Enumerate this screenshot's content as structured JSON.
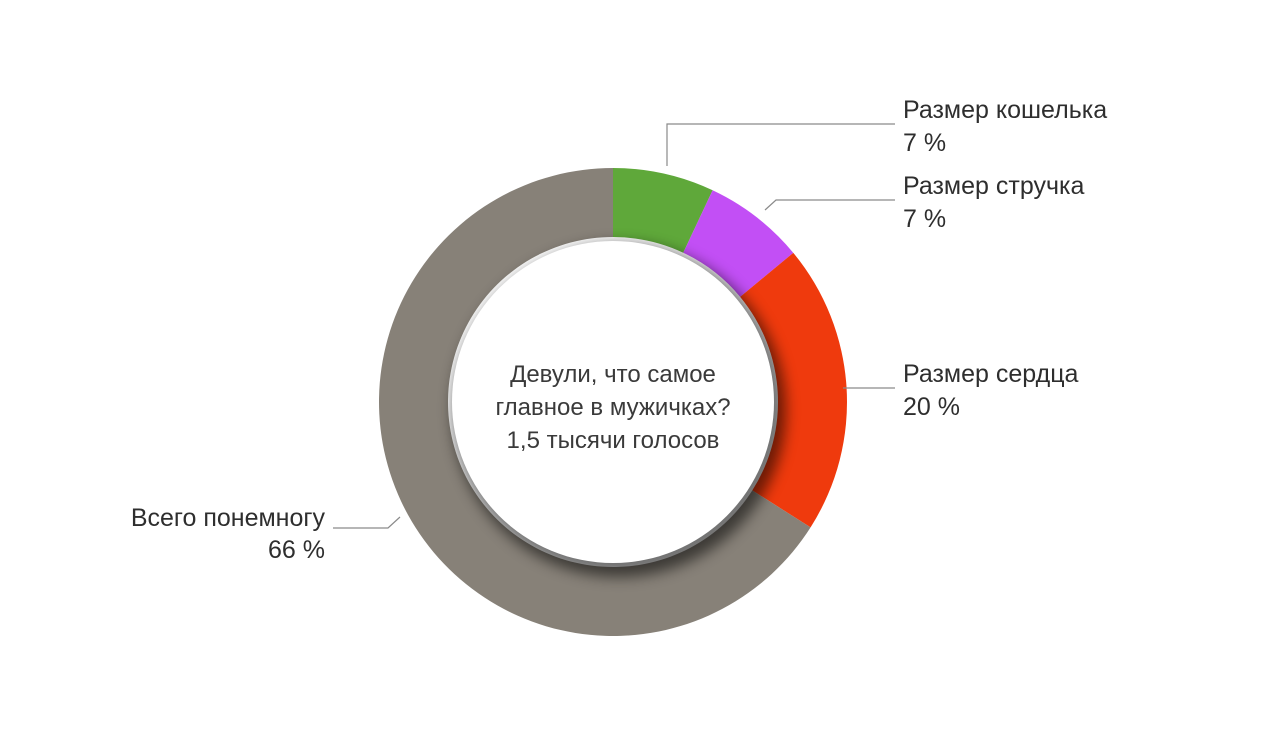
{
  "chart_data": {
    "type": "pie",
    "variant": "donut",
    "title": "Девули, что самое главное в мужичках?",
    "subtitle": "1,5 тысячи голосов",
    "unit": "%",
    "slices": [
      {
        "label": "Размер кошелька",
        "value": 7,
        "value_text": "7 %",
        "color": "#5fa83a"
      },
      {
        "label": "Размер стручка",
        "value": 7,
        "value_text": "7 %",
        "color": "#c24ff5"
      },
      {
        "label": "Размер сердца",
        "value": 20,
        "value_text": "20 %",
        "color": "#ef3a0d"
      },
      {
        "label": "Всего понемногу",
        "value": 66,
        "value_text": "66 %",
        "color": "#878178"
      }
    ],
    "center_lines": [
      "Девули, что самое",
      "главное в мужичках?",
      "1,5 тысячи голосов"
    ],
    "legend": "none",
    "grid": false
  }
}
